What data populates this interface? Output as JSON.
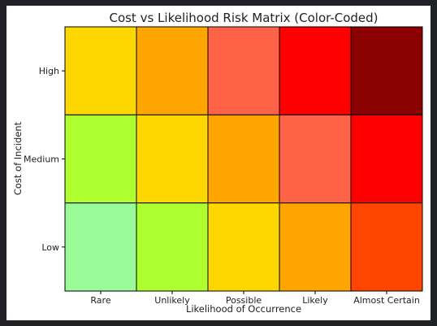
{
  "chart_data": {
    "type": "heatmap",
    "title": "Cost vs Likelihood Risk Matrix (Color-Coded)",
    "xlabel": "Likelihood of Occurrence",
    "ylabel": "Cost of Incident",
    "x_categories": [
      "Rare",
      "Unlikely",
      "Possible",
      "Likely",
      "Almost Certain"
    ],
    "y_categories": [
      "High",
      "Medium",
      "Low"
    ],
    "colors": [
      [
        "#FFD700",
        "#FFA500",
        "#FF6347",
        "#FF0000",
        "#8B0000"
      ],
      [
        "#ADFF2F",
        "#FFD700",
        "#FFA500",
        "#FF6347",
        "#FF0000"
      ],
      [
        "#98FB98",
        "#ADFF2F",
        "#FFD700",
        "#FFA500",
        "#FF4500"
      ]
    ],
    "grid": true
  }
}
